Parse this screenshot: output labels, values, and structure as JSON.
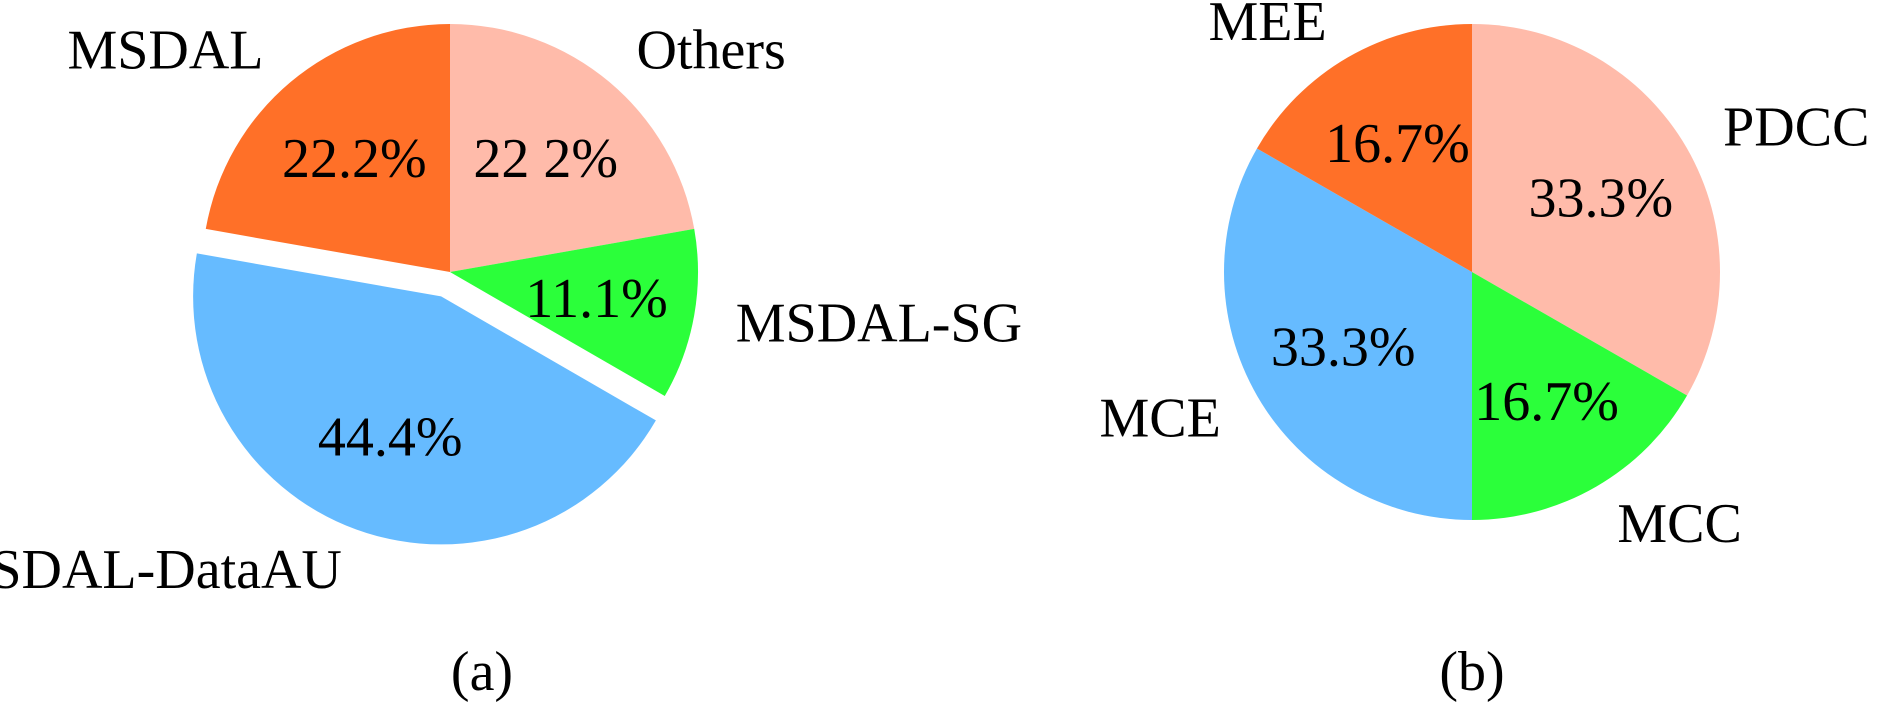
{
  "chart_data": [
    {
      "type": "pie",
      "caption": "(a)",
      "title": "",
      "start_angle": 90,
      "direction": "clockwise",
      "slices": [
        {
          "label": "Others",
          "value": 22.2,
          "pct_label": "22 2%",
          "color": "#FFBBAA",
          "explode": false
        },
        {
          "label": "MSDAL-SG",
          "value": 11.1,
          "pct_label": "11.1%",
          "color": "#2BFF3A",
          "explode": false
        },
        {
          "label": "MSDAL-DataAU",
          "value": 44.4,
          "pct_label": "44.4%",
          "color": "#66BBFF",
          "explode": true
        },
        {
          "label": "MSDAL",
          "value": 22.2,
          "pct_label": "22.2%",
          "color": "#FF7028",
          "explode": false
        }
      ]
    },
    {
      "type": "pie",
      "caption": "(b)",
      "title": "",
      "start_angle": 90,
      "direction": "clockwise",
      "slices": [
        {
          "label": "PDCC",
          "value": 33.3,
          "pct_label": "33.3%",
          "color": "#FFBBAA",
          "explode": false
        },
        {
          "label": "MCC",
          "value": 16.7,
          "pct_label": "16.7%",
          "color": "#2BFF3A",
          "explode": false
        },
        {
          "label": "MCE",
          "value": 33.3,
          "pct_label": "33.3%",
          "color": "#66BBFF",
          "explode": false
        },
        {
          "label": "MEE",
          "value": 16.7,
          "pct_label": "16.7%",
          "color": "#FF7028",
          "explode": false
        }
      ]
    }
  ]
}
